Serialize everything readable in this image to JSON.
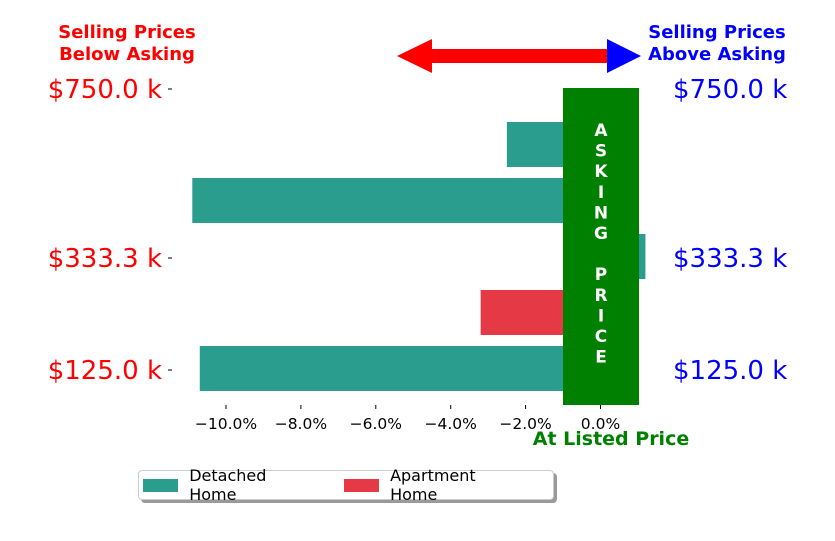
{
  "chart_data": {
    "type": "bar",
    "orientation": "horizontal",
    "xlim": [
      -11.2,
      1.0
    ],
    "x_ticks": [
      {
        "value": -10,
        "label": "−10.0%"
      },
      {
        "value": -8,
        "label": "−8.0%"
      },
      {
        "value": -6,
        "label": "−6.0%"
      },
      {
        "value": -4,
        "label": "−4.0%"
      },
      {
        "value": -2,
        "label": "−2.0%"
      },
      {
        "value": 0,
        "label": "0.0%"
      }
    ],
    "y_ticks": [
      "$750.0 k",
      "$333.3 k",
      "$125.0 k"
    ],
    "bars": [
      {
        "series": "Detached Home",
        "value": -2.5
      },
      {
        "series": "Detached Home",
        "value": -10.9
      },
      {
        "series": "Detached Home",
        "value": 1.2
      },
      {
        "series": "Apartment Home",
        "value": -3.2
      },
      {
        "series": "Detached Home",
        "value": -10.7
      }
    ],
    "series": [
      {
        "name": "Detached Home",
        "color": "#2a9d8f"
      },
      {
        "name": "Apartment Home",
        "color": "#e63946"
      }
    ],
    "annotations": {
      "left_title": [
        "Selling Prices",
        "Below Asking"
      ],
      "right_title": [
        "Selling Prices",
        "Above Asking"
      ],
      "asking_band_letters": [
        "A",
        "S",
        "K",
        "I",
        "N",
        "G",
        "",
        "P",
        "R",
        "I",
        "C",
        "E"
      ],
      "at_listed_price": "At Listed Price"
    },
    "colors": {
      "below": "#ff0000",
      "above": "#0000ff",
      "asking_band": "#008000"
    },
    "legend": "bottom-center"
  }
}
